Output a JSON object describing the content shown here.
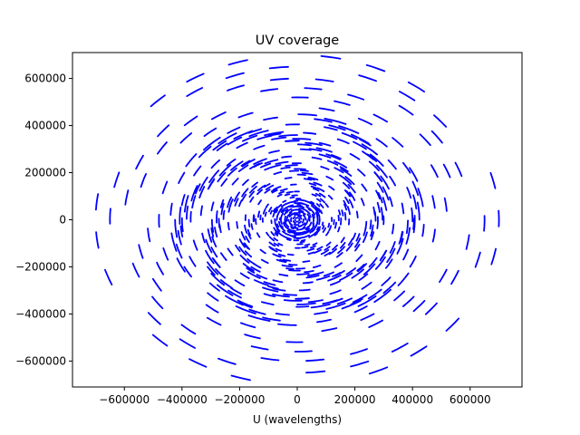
{
  "chart_data": {
    "type": "scatter",
    "title": "UV coverage",
    "xlabel": "U (wavelengths)",
    "ylabel": "",
    "xlim": [
      -780000,
      780000
    ],
    "ylim": [
      -710000,
      710000
    ],
    "x_ticks": [
      -600000,
      -400000,
      -200000,
      0,
      200000,
      400000,
      600000
    ],
    "y_ticks": [
      -600000,
      -400000,
      -200000,
      0,
      200000,
      400000,
      600000
    ],
    "x_tick_labels": [
      "−600000",
      "−400000",
      "−200000",
      "0",
      "200000",
      "400000",
      "600000"
    ],
    "y_tick_labels": [
      "−600000",
      "−400000",
      "−200000",
      "0",
      "200000",
      "400000",
      "600000"
    ],
    "grid": false,
    "legend": "none",
    "marker_color": "#0000ff",
    "series": [
      {
        "marker": "dash-tracks",
        "track_model": {
          "arms": 6,
          "radii": [
            30000,
            60000,
            90000,
            120000,
            150000,
            180000,
            210000,
            240000,
            270000,
            300000,
            335000,
            370000,
            405000,
            440000,
            480000,
            520000,
            560000,
            600000,
            650000,
            700000
          ],
          "segments_per_ring": 18,
          "segment_arc_deg": 5.5
        }
      }
    ]
  }
}
